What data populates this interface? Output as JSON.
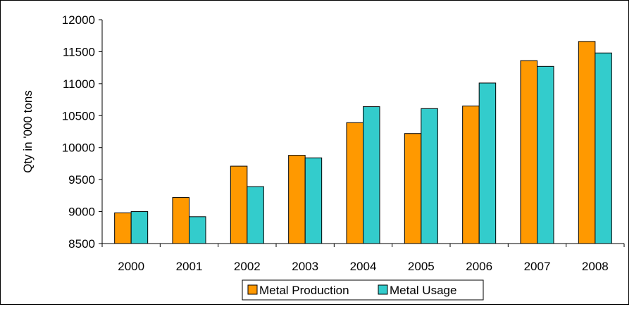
{
  "chart_data": {
    "type": "bar",
    "title": "",
    "xlabel": "",
    "ylabel": "Qty in '000 tons",
    "categories": [
      "2000",
      "2001",
      "2002",
      "2003",
      "2004",
      "2005",
      "2006",
      "2007",
      "2008"
    ],
    "series": [
      {
        "name": "Metal Production",
        "color": "#FF9900",
        "values": [
          8980,
          9220,
          9710,
          9880,
          10390,
          10220,
          10650,
          11360,
          11660
        ]
      },
      {
        "name": "Metal Usage",
        "color": "#33CCCC",
        "values": [
          9000,
          8920,
          9390,
          9840,
          10640,
          10610,
          11010,
          11270,
          11480
        ]
      }
    ],
    "ylim": [
      8500,
      12000
    ],
    "yticks": [
      8500,
      9000,
      9500,
      10000,
      10500,
      11000,
      11500,
      12000
    ],
    "grid": false,
    "legend_position": "bottom"
  }
}
